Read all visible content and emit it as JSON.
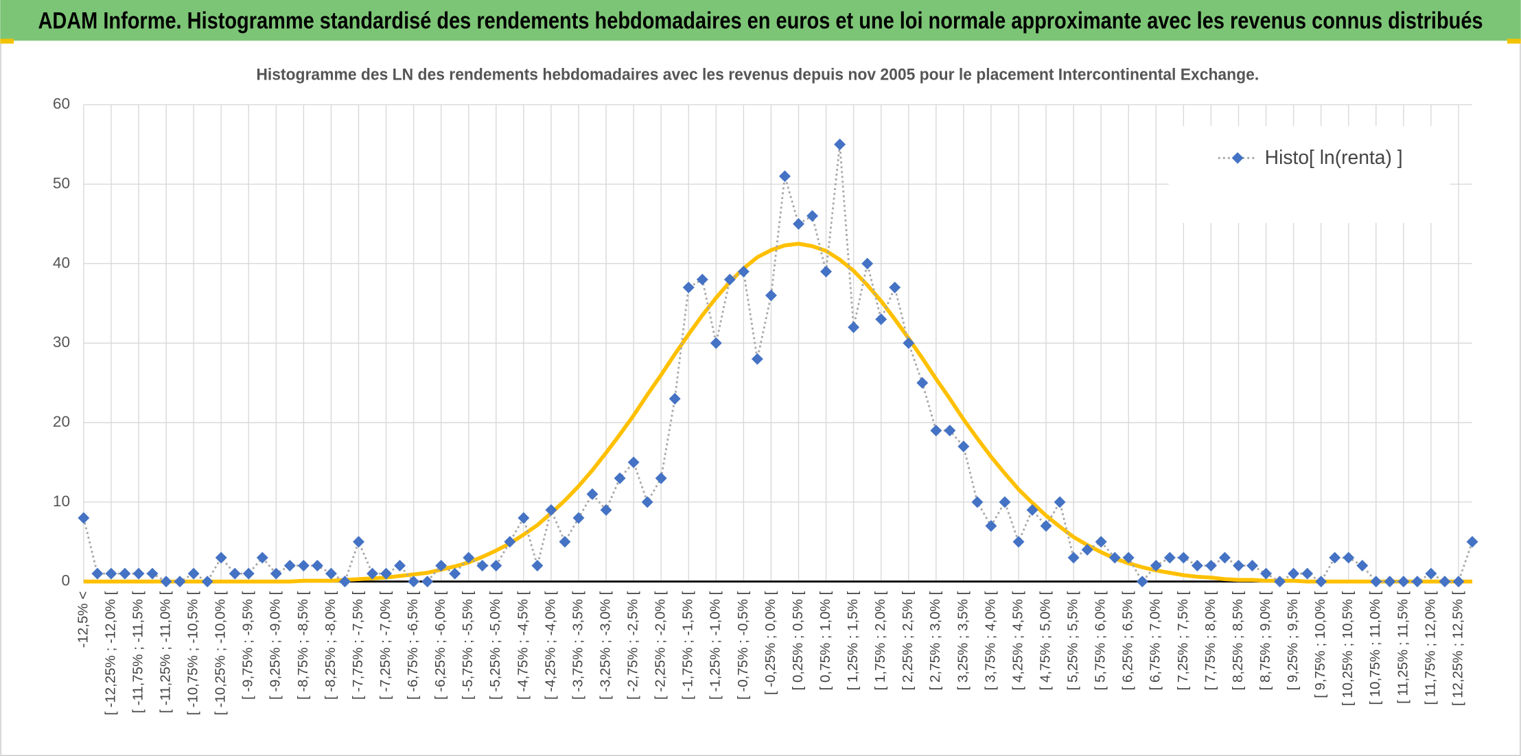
{
  "chart_data": {
    "type": "line",
    "header": "ADAM Informe. Histogramme standardisé des rendements hebdomadaires en euros et une loi normale approximante avec les revenus connus distribués",
    "title": "Histogramme des LN des rendements hebdomadaires avec les revenus depuis nov 2005 pour le placement Intercontinental Exchange.",
    "categories": [
      "-12,5% <",
      null,
      "[ -12,25% ; -12,0% [",
      null,
      "[ -11,75% ; -11,5% [",
      null,
      "[ -11,25% ; -11,0% [",
      null,
      "[ -10,75% ; -10,5% [",
      null,
      "[ -10,25% ; -10,0% [",
      null,
      "[ -9,75% ; -9,5% [",
      null,
      "[ -9,25% ; -9,0% [",
      null,
      "[ -8,75% ; -8,5% [",
      null,
      "[ -8,25% ; -8,0% [",
      null,
      "[ -7,75% ; -7,5% [",
      null,
      "[ -7,25% ; -7,0% [",
      null,
      "[ -6,75% ; -6,5% [",
      null,
      "[ -6,25% ; -6,0% [",
      null,
      "[ -5,75% ; -5,5% [",
      null,
      "[ -5,25% ; -5,0% [",
      null,
      "[ -4,75% ; -4,5% [",
      null,
      "[ -4,25% ; -4,0% [",
      null,
      "[ -3,75% ; -3,5% [",
      null,
      "[ -3,25% ; -3,0% [",
      null,
      "[ -2,75% ; -2,5% [",
      null,
      "[ -2,25% ; -2,0% [",
      null,
      "[ -1,75% ; -1,5% [",
      null,
      "[ -1,25% ; -1,0% [",
      null,
      "[ -0,75% ; -0,5% [",
      null,
      "[ -0,25% ; 0,0% [",
      null,
      "[ 0,25% ; 0,5% [",
      null,
      "[ 0,75% ; 1,0% [",
      null,
      "[ 1,25% ; 1,5% [",
      null,
      "[ 1,75% ; 2,0% [",
      null,
      "[ 2,25% ; 2,5% [",
      null,
      "[ 2,75% ; 3,0% [",
      null,
      "[ 3,25% ; 3,5% [",
      null,
      "[ 3,75% ; 4,0% [",
      null,
      "[ 4,25% ; 4,5% [",
      null,
      "[ 4,75% ; 5,0% [",
      null,
      "[ 5,25% ; 5,5% [",
      null,
      "[ 5,75% ; 6,0% [",
      null,
      "[ 6,25% ; 6,5% [",
      null,
      "[ 6,75% ; 7,0% [",
      null,
      "[ 7,25% ; 7,5% [",
      null,
      "[ 7,75% ; 8,0% [",
      null,
      "[ 8,25% ; 8,5% [",
      null,
      "[ 8,75% ; 9,0% [",
      null,
      "[ 9,25% ; 9,5% [",
      null,
      "[ 9,75% ; 10,0% [",
      null,
      "[ 10,25% ; 10,5% [",
      null,
      "[ 10,75% ; 11,0% [",
      null,
      "[ 11,25% ; 11,5% [",
      null,
      "[ 11,75% ; 12,0% [",
      null,
      "[ 12,25% ; 12,5% [",
      null
    ],
    "series": [
      {
        "name": "Histo[ ln(renta) ]",
        "color": "#4472c4",
        "values": [
          8,
          1,
          1,
          1,
          1,
          1,
          0,
          0,
          1,
          0,
          3,
          1,
          1,
          3,
          1,
          2,
          2,
          2,
          1,
          0,
          5,
          1,
          1,
          2,
          0,
          0,
          2,
          1,
          3,
          2,
          2,
          5,
          8,
          2,
          9,
          5,
          8,
          11,
          9,
          13,
          15,
          10,
          13,
          23,
          37,
          38,
          30,
          38,
          39,
          28,
          36,
          51,
          45,
          46,
          39,
          55,
          32,
          40,
          33,
          37,
          30,
          25,
          19,
          19,
          17,
          10,
          7,
          10,
          5,
          9,
          7,
          10,
          3,
          4,
          5,
          3,
          3,
          0,
          2,
          3,
          3,
          2,
          2,
          3,
          2,
          2,
          1,
          0,
          1,
          1,
          0,
          3,
          3,
          2,
          0,
          0,
          0,
          0,
          1,
          0,
          0,
          5
        ]
      },
      {
        "color": "#ffc000",
        "values": [
          0,
          0,
          0,
          0,
          0,
          0,
          0,
          0,
          0,
          0,
          0,
          0,
          0,
          0,
          0,
          0,
          0.1,
          0.1,
          0.1,
          0.2,
          0.3,
          0.4,
          0.5,
          0.7,
          0.9,
          1.1,
          1.5,
          1.9,
          2.4,
          3.1,
          3.9,
          4.8,
          5.9,
          7.1,
          8.6,
          10.2,
          12.0,
          14.0,
          16.2,
          18.5,
          20.9,
          23.5,
          26.0,
          28.6,
          31.1,
          33.5,
          35.7,
          37.7,
          39.4,
          40.8,
          41.7,
          42.3,
          42.5,
          42.2,
          41.6,
          40.5,
          39.1,
          37.3,
          35.3,
          33.0,
          30.6,
          28.1,
          25.5,
          23.0,
          20.4,
          18.0,
          15.7,
          13.6,
          11.6,
          9.9,
          8.3,
          6.9,
          5.6,
          4.6,
          3.7,
          2.9,
          2.3,
          1.8,
          1.4,
          1.1,
          0.8,
          0.6,
          0.5,
          0.3,
          0.2,
          0.2,
          0.1,
          0.1,
          0.1,
          0,
          0,
          0,
          0,
          0,
          0,
          0,
          0,
          0,
          0,
          0,
          0,
          0
        ]
      }
    ],
    "ylim": [
      0,
      60
    ],
    "yticks": [
      0,
      10,
      20,
      30,
      40,
      50,
      60
    ],
    "grid": true,
    "legend": "top-right",
    "header_color": "#7cc576"
  }
}
